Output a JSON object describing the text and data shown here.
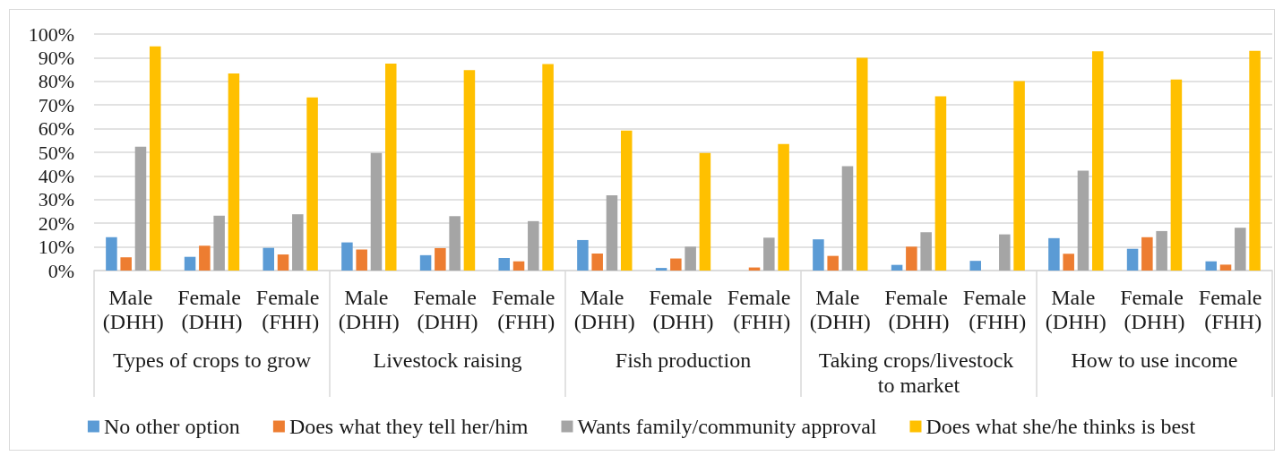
{
  "chart_data": {
    "type": "bar",
    "categories": [
      "Male (DHH)",
      "Female (DHH)",
      "Female (FHH)",
      "Male (DHH)",
      "Female (DHH)",
      "Female (FHH)",
      "Male (DHH)",
      "Female (DHH)",
      "Female (FHH)",
      "Male (DHH)",
      "Female (DHH)",
      "Female (FHH)",
      "Male (DHH)",
      "Female (DHH)",
      "Female (FHH)"
    ],
    "annotations": [
      "Types of crops to grow",
      "Livestock raising",
      "Fish production",
      "Taking crops/livestock to market",
      "How to use income"
    ],
    "series": [
      {
        "name": "No other option",
        "color": "#5b9bd5",
        "values": [
          14.1,
          5.8,
          9.6,
          11.9,
          6.5,
          5.3,
          12.9,
          1.1,
          0,
          13.2,
          2.4,
          4.1,
          13.7,
          9.2,
          3.9
        ]
      },
      {
        "name": "Does what they tell her/him",
        "color": "#ed7d31",
        "values": [
          5.6,
          10.5,
          6.8,
          8.9,
          9.5,
          3.9,
          7.2,
          5.1,
          1.3,
          6.2,
          10.1,
          0,
          7.1,
          14.1,
          2.5
        ]
      },
      {
        "name": "Wants family/community approval",
        "color": "#a5a5a5",
        "values": [
          52.4,
          23.2,
          23.8,
          49.7,
          23.0,
          20.9,
          31.8,
          10.1,
          13.9,
          44.1,
          16.2,
          15.3,
          42.2,
          16.7,
          18.1
        ]
      },
      {
        "name": "Does what she/he thinks is best",
        "color": "#ffc000",
        "values": [
          94.8,
          83.3,
          73.2,
          87.5,
          84.8,
          87.3,
          59.2,
          49.7,
          53.5,
          90.0,
          73.7,
          80.1,
          92.7,
          80.8,
          92.9
        ]
      }
    ],
    "ylim": [
      0,
      100
    ],
    "yticks": [
      {
        "value": 0,
        "label": "0%"
      },
      {
        "value": 10,
        "label": "10%"
      },
      {
        "value": 20,
        "label": "20%"
      },
      {
        "value": 30,
        "label": "30%"
      },
      {
        "value": 40,
        "label": "40%"
      },
      {
        "value": 50,
        "label": "50%"
      },
      {
        "value": 60,
        "label": "60%"
      },
      {
        "value": 70,
        "label": "70%"
      },
      {
        "value": 80,
        "label": "80%"
      },
      {
        "value": 90,
        "label": "90%"
      },
      {
        "value": 100,
        "label": "100%"
      }
    ],
    "grid": "y",
    "legend": "bottom"
  }
}
